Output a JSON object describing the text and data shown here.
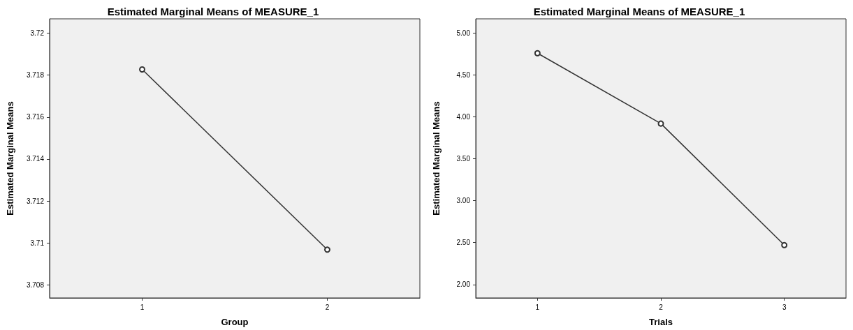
{
  "chart_data": [
    {
      "type": "line",
      "title": "Estimated Marginal Means of MEASURE_1",
      "xlabel": "Group",
      "ylabel": "Estimated Marginal Means",
      "categories": [
        "1",
        "2"
      ],
      "series": [
        {
          "color": "#333333",
          "values": [
            3.71827,
            3.70968
          ]
        }
      ],
      "ylim": [
        3.70738,
        3.72068
      ],
      "yticks": [
        3.708,
        3.71,
        3.712,
        3.714,
        3.716,
        3.718,
        3.72
      ],
      "grid": false,
      "marker": "circle",
      "line_style": "solid"
    },
    {
      "type": "line",
      "title": "Estimated Marginal Means of MEASURE_1",
      "xlabel": "Trials",
      "ylabel": "Estimated Marginal Means",
      "categories": [
        "1",
        "2",
        "3"
      ],
      "series": [
        {
          "color": "#333333",
          "values": [
            4.76,
            3.92,
            2.47
          ]
        }
      ],
      "ylim": [
        1.84,
        5.17
      ],
      "yticks": [
        {
          "value": 2,
          "label": "2.00"
        },
        {
          "value": 2.5,
          "label": "2.50"
        },
        {
          "value": 3,
          "label": "3.00"
        },
        {
          "value": 3.5,
          "label": "3.50"
        },
        {
          "value": 4,
          "label": "4.00"
        },
        {
          "value": 4.5,
          "label": "4.50"
        },
        {
          "value": 5,
          "label": "5.00"
        }
      ],
      "grid": false,
      "marker": "circle",
      "line_style": "solid"
    }
  ]
}
